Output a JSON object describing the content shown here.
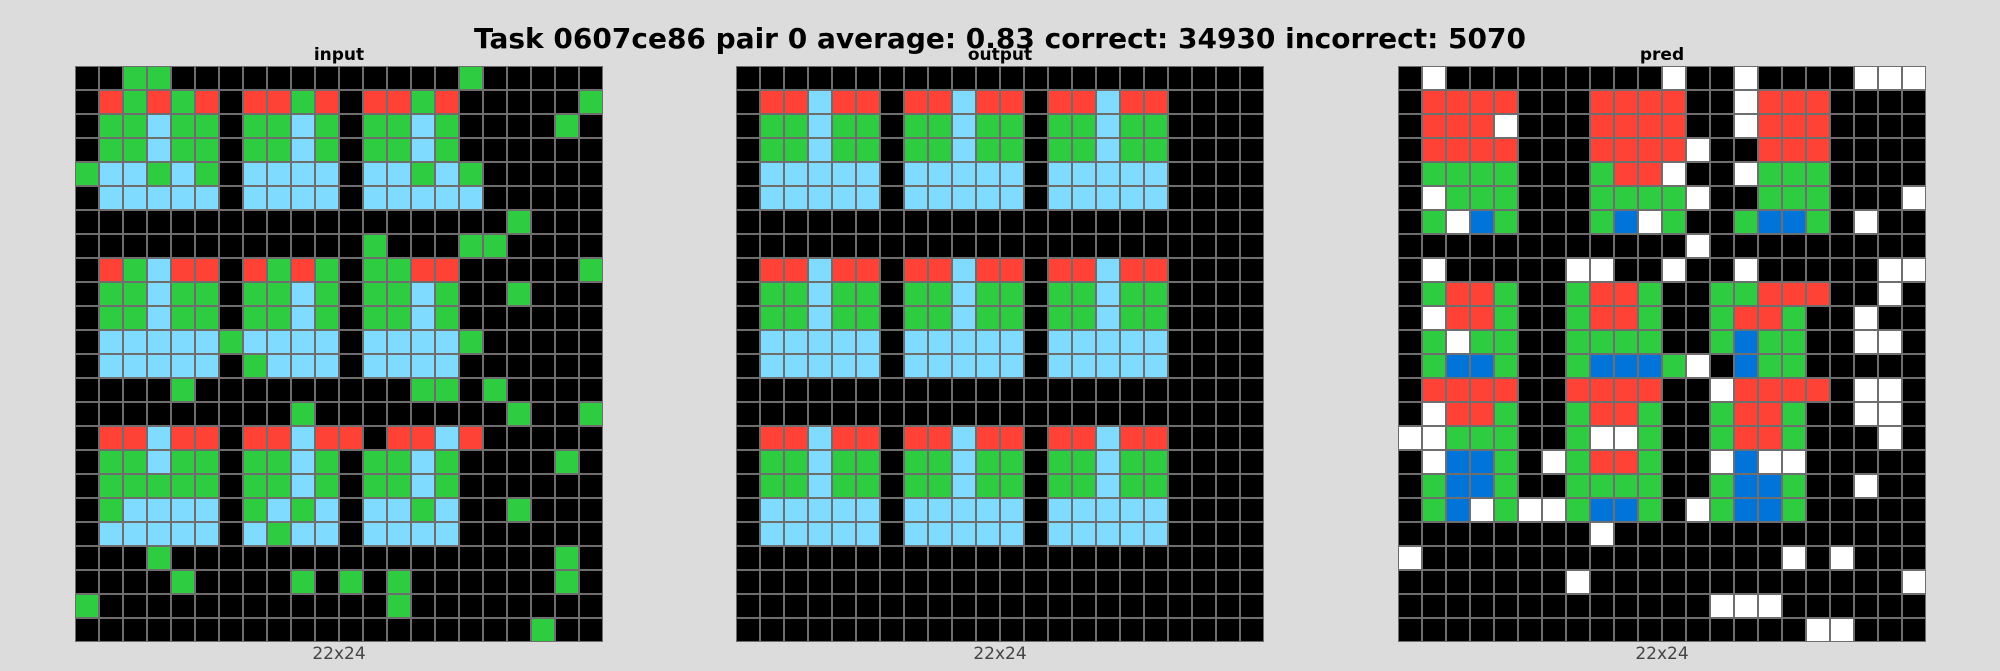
{
  "title": "Task 0607ce86 pair 0 average: 0.83 correct: 34930 incorrect: 5070",
  "palette": {
    "0": "#000000",
    "1": "#0074d9",
    "2": "#ff4136",
    "3": "#2ecc40",
    "5": "#ffffff",
    "8": "#7fdbff"
  },
  "panels": [
    {
      "label": "input",
      "dims": "22x24",
      "rows": [
        "0033000000000000300000",
        "0232320223202232000003",
        "0338330338303383000030",
        "0338330338303383000000",
        "3883830888808838300000",
        "0888880888808888800000",
        "0000000000000000003000",
        "0000000000003000330000",
        "0238220232303322000003",
        "0338330338303383003000",
        "0338330338303383000000",
        "0888883888808888300000",
        "0888880388808888000000",
        "0000300000000033030000",
        "0000000003000000003003",
        "0228220228220228200000",
        "0338330338303383000030",
        "0333330338303383000000",
        "0388880383808838003000",
        "0888880838808888000000",
        "0003000000000000000030",
        "0000300003030300000030",
        "3000000000000300000000",
        "0000000000000000000300"
      ]
    },
    {
      "label": "output",
      "dims": "22x24",
      "rows": [
        "0000000000000000000000",
        "0228220228220228220000",
        "0338330338330338330000",
        "0338330338330338330000",
        "0888880888880888880000",
        "0888880888880888880000",
        "0000000000000000000000",
        "0000000000000000000000",
        "0228220228220228220000",
        "0338330338330338330000",
        "0338330338330338330000",
        "0888880888880888880000",
        "0888880888880888880000",
        "0000000000000000000000",
        "0000000000000000000000",
        "0228220228220228220000",
        "0338330338330338330000",
        "0338330338330338330000",
        "0888880888880888880000",
        "0888880888880888880000",
        "0000000000000000000000",
        "0000000000000000000000",
        "0000000000000000000000",
        "0000000000000000000000"
      ]
    },
    {
      "label": "pred",
      "dims": "22x24",
      "rows": [
        "0500000000050050000555",
        "0222200022220052220000",
        "0222500022220052220000",
        "0222200022225002220000",
        "0333300032250053330000",
        "0533300033335003330005",
        "0351300031530031130500",
        "0000000000005000000000",
        "0500000550050050000055",
        "0322300322300332220050",
        "0522300322300322300500",
        "0353300333300313300550",
        "0311300311135013300000",
        "0222200222200522220550",
        "0522300322300322300550",
        "5533300355300322300050",
        "0511305322300515500000",
        "0311300333300311300500",
        "0315355311305311300000",
        "0000000050000000000000",
        "5000000000000000505000",
        "0000000500000000000005",
        "0000000000000555000000",
        "0000000000000000055000"
      ]
    }
  ]
}
